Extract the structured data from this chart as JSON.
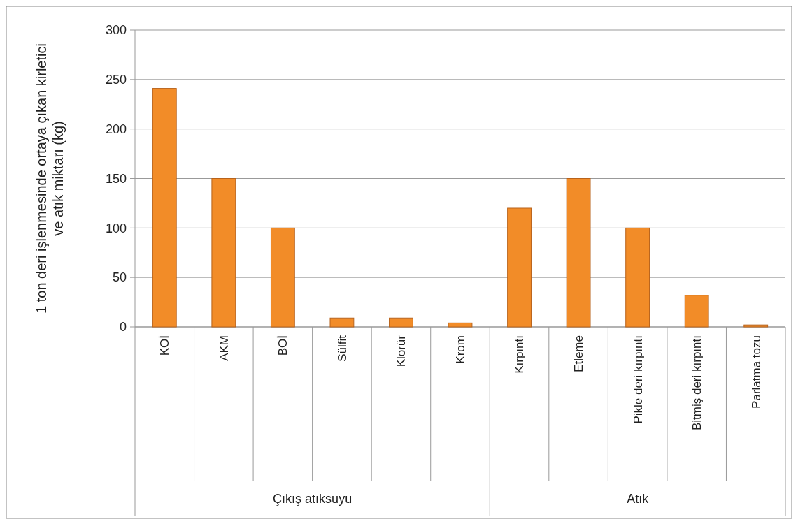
{
  "chart_data": {
    "type": "bar",
    "ylabel": "1 ton deri işlenmesinde ortaya çıkan kirletici ve atık miktarı (kg)",
    "categories": [
      "KOİ",
      "AKM",
      "BOİ",
      "Sülfit",
      "Klorür",
      "Krom",
      "Kırpıntı",
      "Etleme",
      "Pikle deri kırpıntı",
      "Bitmiş deri kırpıntı",
      "Parlatma tozu"
    ],
    "values": [
      241,
      150,
      100,
      9,
      9,
      4,
      120,
      150,
      100,
      32,
      2
    ],
    "color": "#f28c28",
    "ylim": [
      0,
      300
    ],
    "yticks": [
      0,
      50,
      100,
      150,
      200,
      250,
      300
    ],
    "grid": "y",
    "annotations": [
      "Çıkış atıksuyu",
      "Atık"
    ]
  }
}
